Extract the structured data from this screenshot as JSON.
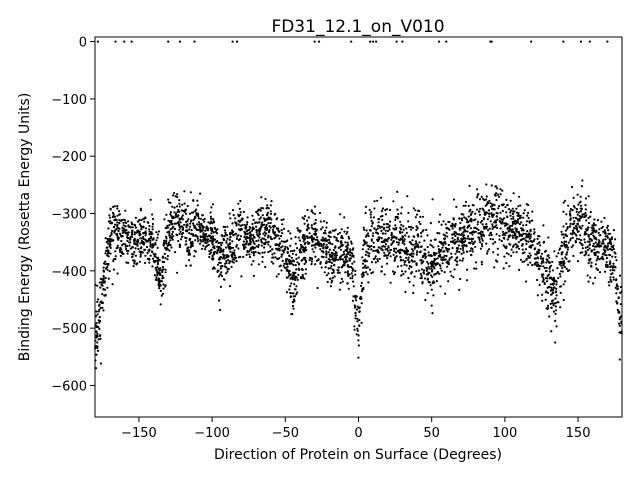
{
  "chart_data": {
    "type": "scatter",
    "title": "FD31_12.1_on_V010",
    "xlabel": "Direction of Protein on Surface (Degrees)",
    "ylabel": "Binding Energy (Rosetta Energy Units)",
    "xlim": [
      -180,
      180
    ],
    "ylim": [
      -655,
      8
    ],
    "xticks": [
      -150,
      -100,
      -50,
      0,
      50,
      100,
      150
    ],
    "yticks": [
      0,
      -100,
      -200,
      -300,
      -400,
      -500,
      -600
    ],
    "xtick_labels": [
      "−150",
      "−100",
      "−50",
      "0",
      "50",
      "100",
      "150"
    ],
    "ytick_labels": [
      "0",
      "−100",
      "−200",
      "−300",
      "−400",
      "−500",
      "−600"
    ],
    "grid": false,
    "marker_color": "#000000",
    "zero_points_x": [
      -178,
      -166,
      -160,
      -155,
      -130,
      -122,
      -112,
      -86,
      -83,
      -30,
      -27,
      -5,
      8,
      10,
      12,
      26,
      30,
      55,
      60,
      90,
      91,
      118,
      140,
      152,
      158,
      170
    ],
    "profile": {
      "x": [
        -180,
        -175,
        -170,
        -165,
        -160,
        -155,
        -150,
        -145,
        -140,
        -135,
        -130,
        -125,
        -120,
        -115,
        -110,
        -105,
        -100,
        -95,
        -90,
        -85,
        -80,
        -75,
        -70,
        -65,
        -60,
        -55,
        -50,
        -45,
        -40,
        -35,
        -30,
        -25,
        -20,
        -15,
        -10,
        -5,
        0,
        5,
        10,
        15,
        20,
        25,
        30,
        35,
        40,
        45,
        50,
        55,
        60,
        65,
        70,
        75,
        80,
        85,
        90,
        95,
        100,
        105,
        110,
        115,
        120,
        125,
        130,
        135,
        140,
        145,
        150,
        155,
        160,
        165,
        170,
        175,
        180
      ],
      "center": [
        -520,
        -440,
        -340,
        -330,
        -345,
        -350,
        -345,
        -340,
        -360,
        -420,
        -330,
        -310,
        -320,
        -335,
        -325,
        -330,
        -350,
        -380,
        -375,
        -345,
        -340,
        -350,
        -345,
        -330,
        -330,
        -350,
        -375,
        -420,
        -370,
        -355,
        -345,
        -360,
        -370,
        -375,
        -365,
        -380,
        -490,
        -355,
        -340,
        -345,
        -350,
        -350,
        -360,
        -365,
        -360,
        -375,
        -390,
        -365,
        -360,
        -350,
        -345,
        -330,
        -325,
        -320,
        -315,
        -310,
        -325,
        -325,
        -330,
        -340,
        -355,
        -400,
        -415,
        -440,
        -360,
        -325,
        -320,
        -335,
        -355,
        -350,
        -355,
        -390,
        -520
      ],
      "spread": [
        45,
        40,
        35,
        35,
        30,
        30,
        30,
        30,
        35,
        45,
        40,
        40,
        35,
        30,
        30,
        30,
        35,
        35,
        35,
        35,
        35,
        35,
        35,
        35,
        35,
        35,
        40,
        40,
        35,
        35,
        35,
        35,
        35,
        35,
        35,
        35,
        40,
        35,
        40,
        40,
        40,
        40,
        35,
        35,
        35,
        40,
        40,
        35,
        35,
        35,
        35,
        40,
        40,
        40,
        45,
        45,
        40,
        35,
        35,
        35,
        35,
        40,
        40,
        45,
        40,
        40,
        40,
        40,
        35,
        35,
        35,
        40,
        50
      ]
    }
  }
}
